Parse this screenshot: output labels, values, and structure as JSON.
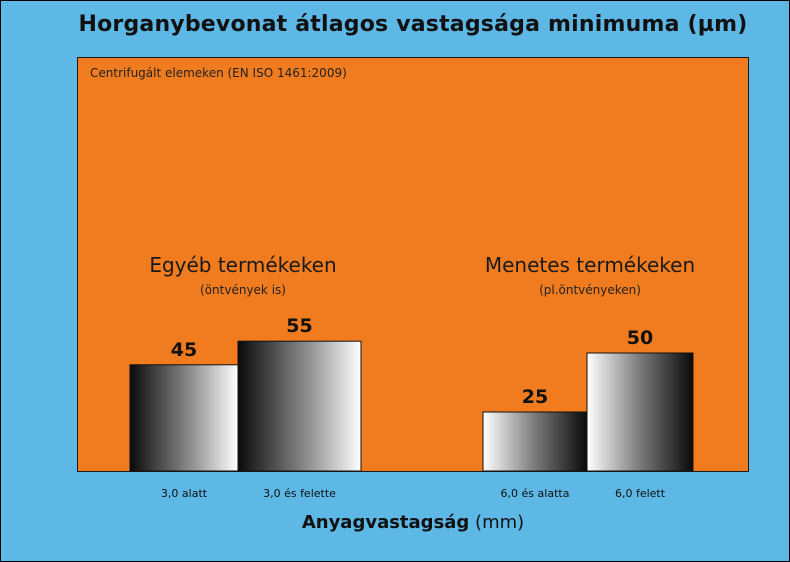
{
  "header": {
    "title": "Horganybevonat átlagos vastagsága minimuma (µm)",
    "subtitle": "Centrifugált elemeken (EN ISO 1461:2009)"
  },
  "groups": [
    {
      "title": "Egyéb termékeken",
      "subtitle": "(öntvények is)"
    },
    {
      "title": "Menetes termékeken",
      "subtitle": "(pl.öntvényeken)"
    }
  ],
  "axis": {
    "xlabel_bold": "Anyagvastagság",
    "xlabel_unit": "(mm)"
  },
  "colors": {
    "background": "#5db8e6",
    "plot": "#f07c1f"
  },
  "chart_data": {
    "type": "bar",
    "title": "Horganybevonat átlagos vastagsága minimuma (µm)",
    "subtitle": "Centrifugált elemeken (EN ISO 1461:2009)",
    "xlabel": "Anyagvastagság (mm)",
    "categories": [
      "3,0 alatt",
      "3,0 és felette",
      "6,0 és alatta",
      "6,0 felett"
    ],
    "values": [
      45,
      55,
      25,
      50
    ],
    "groups": [
      "Egyéb termékeken",
      "Egyéb termékeken",
      "Menetes termékeken",
      "Menetes termékeken"
    ],
    "grid": false
  }
}
